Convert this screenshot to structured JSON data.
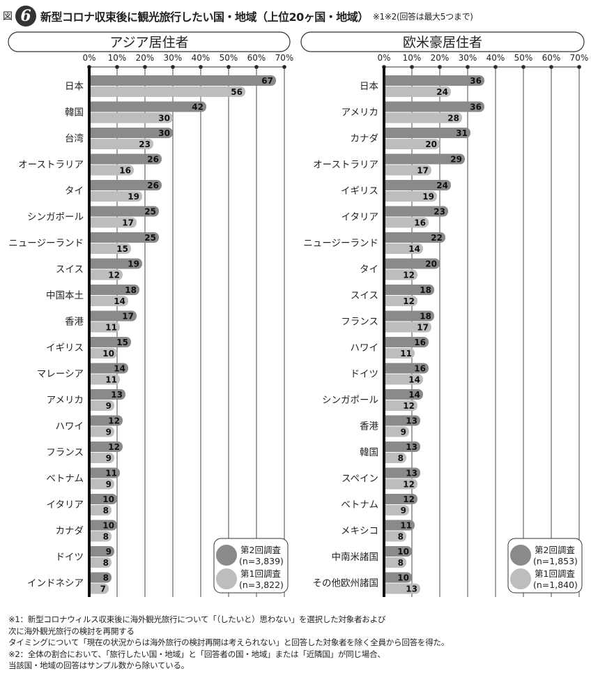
{
  "header": {
    "figure_label": "図",
    "figure_number": "6",
    "title": "新型コロナ収束後に観光旅行したい国・地域（上位20ヶ国・地域）",
    "title_note": "※1※2(回答は最大5つまで)"
  },
  "chart_data": [
    {
      "type": "bar",
      "title": "アジア居住者",
      "axis_ticks": [
        "0%",
        "10%",
        "20%",
        "30%",
        "40%",
        "50%",
        "60%",
        "70%"
      ],
      "xlim": [
        0,
        70
      ],
      "categories": [
        "日本",
        "韓国",
        "台湾",
        "オーストラリア",
        "タイ",
        "シンガポール",
        "ニュージーランド",
        "スイス",
        "中国本土",
        "香港",
        "イギリス",
        "マレーシア",
        "アメリカ",
        "ハワイ",
        "フランス",
        "ベトナム",
        "イタリア",
        "カナダ",
        "ドイツ",
        "インドネシア"
      ],
      "series": [
        {
          "name": "第2回調査",
          "sample": "(n=3,839)",
          "color": "#8a8a8a",
          "values": [
            67,
            42,
            30,
            26,
            26,
            25,
            25,
            19,
            18,
            17,
            15,
            14,
            13,
            12,
            12,
            11,
            10,
            10,
            9,
            8
          ]
        },
        {
          "name": "第1回調査",
          "sample": "(n=3,822)",
          "color": "#bdbdbd",
          "values": [
            56,
            30,
            23,
            16,
            19,
            17,
            15,
            12,
            14,
            11,
            10,
            11,
            9,
            9,
            9,
            9,
            8,
            8,
            8,
            7
          ]
        }
      ]
    },
    {
      "type": "bar",
      "title": "欧米豪居住者",
      "axis_ticks": [
        "0%",
        "10%",
        "20%",
        "30%",
        "40%",
        "50%",
        "60%",
        "70%"
      ],
      "xlim": [
        0,
        70
      ],
      "categories": [
        "日本",
        "アメリカ",
        "カナダ",
        "オーストラリア",
        "イギリス",
        "イタリア",
        "ニュージーランド",
        "タイ",
        "スイス",
        "フランス",
        "ハワイ",
        "ドイツ",
        "シンガポール",
        "香港",
        "韓国",
        "スペイン",
        "ベトナム",
        "メキシコ",
        "中南米諸国",
        "その他欧州諸国"
      ],
      "series": [
        {
          "name": "第2回調査",
          "sample": "(n=1,853)",
          "color": "#8a8a8a",
          "values": [
            36,
            36,
            31,
            29,
            24,
            23,
            22,
            20,
            18,
            18,
            16,
            16,
            14,
            13,
            13,
            13,
            12,
            11,
            10,
            10
          ]
        },
        {
          "name": "第1回調査",
          "sample": "(n=1,840)",
          "color": "#bdbdbd",
          "values": [
            24,
            28,
            20,
            17,
            19,
            16,
            14,
            12,
            12,
            17,
            11,
            14,
            12,
            9,
            8,
            12,
            9,
            8,
            8,
            13
          ]
        }
      ]
    }
  ],
  "footnotes": [
    "※1：新型コロナウィルス収束後に海外観光旅行について「（したいと）思わない」を選択した対象者および",
    "次に海外観光旅行の検討を再開する",
    "タイミングについて「現在の状況からは海外旅行の検討再開は考えられない」と回答した対象者を除く全員から回答を得た。",
    "※2：全体の割合において、「旅行したい国・地域」と「回答者の国・地域」または「近隣国」が同じ場合、",
    "当該国・地域の回答はサンプル数から除いている。"
  ]
}
